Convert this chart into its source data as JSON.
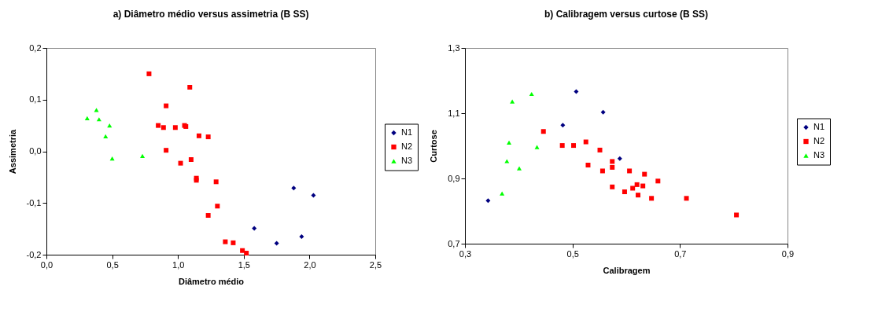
{
  "chart_data": [
    {
      "type": "scatter",
      "title": "a) Diâmetro médio versus assimetria (B SS)",
      "xlabel": "Diâmetro médio",
      "ylabel": "Assimetria",
      "xlim": [
        0,
        2.5
      ],
      "xticks": [
        {
          "value": 0,
          "label": "0,0"
        },
        {
          "value": 0.5,
          "label": "0,5"
        },
        {
          "value": 1,
          "label": "1,0"
        },
        {
          "value": 1.5,
          "label": "1,5"
        },
        {
          "value": 2,
          "label": "2,0"
        },
        {
          "value": 2.5,
          "label": "2,5"
        }
      ],
      "ylim": [
        -0.2,
        0.2
      ],
      "yticks": [
        {
          "value": -0.2,
          "label": "-0,2"
        },
        {
          "value": -0.1,
          "label": "-0,1"
        },
        {
          "value": 0,
          "label": "0,0"
        },
        {
          "value": 0.1,
          "label": "0,1"
        },
        {
          "value": 0.2,
          "label": "0,2"
        }
      ],
      "grid": false,
      "legend": "right",
      "series": [
        {
          "name": "N1",
          "color": "#000080",
          "marker": "diamond",
          "x": [
            1.58,
            1.75,
            1.88,
            1.94,
            2.03
          ],
          "values": [
            -0.149,
            -0.178,
            -0.071,
            -0.165,
            -0.085
          ]
        },
        {
          "name": "N2",
          "color": "#ff0000",
          "marker": "square",
          "x": [
            0.78,
            1.09,
            0.91,
            0.85,
            0.89,
            0.98,
            1.05,
            1.06,
            1.16,
            1.23,
            0.91,
            1.02,
            1.1,
            1.14,
            1.14,
            1.29,
            1.3,
            1.23,
            1.36,
            1.42,
            1.49,
            1.52
          ],
          "values": [
            0.15,
            0.124,
            0.088,
            0.05,
            0.046,
            0.046,
            0.05,
            0.048,
            0.03,
            0.028,
            0.002,
            -0.023,
            -0.016,
            -0.052,
            -0.056,
            -0.059,
            -0.106,
            -0.124,
            -0.175,
            -0.177,
            -0.192,
            -0.197
          ]
        },
        {
          "name": "N3",
          "color": "#00ff00",
          "marker": "triangle",
          "x": [
            0.31,
            0.38,
            0.4,
            0.48,
            0.45,
            0.5,
            0.73
          ],
          "values": [
            0.064,
            0.08,
            0.062,
            0.05,
            0.029,
            -0.014,
            -0.009
          ]
        }
      ]
    },
    {
      "type": "scatter",
      "title": "b) Calibragem versus curtose (B SS)",
      "xlabel": "Calibragem",
      "ylabel": "Curtose",
      "xlim": [
        0.3,
        0.9
      ],
      "xticks": [
        {
          "value": 0.3,
          "label": "0,3"
        },
        {
          "value": 0.5,
          "label": "0,5"
        },
        {
          "value": 0.7,
          "label": "0,7"
        },
        {
          "value": 0.9,
          "label": "0,9"
        }
      ],
      "ylim": [
        0.7,
        1.3
      ],
      "yticks": [
        {
          "value": 0.7,
          "label": "0,7"
        },
        {
          "value": 0.9,
          "label": "0,9"
        },
        {
          "value": 1.1,
          "label": "1,1"
        },
        {
          "value": 1.3,
          "label": "1,3"
        }
      ],
      "grid": false,
      "legend": "right",
      "series": [
        {
          "name": "N1",
          "color": "#000080",
          "marker": "diamond",
          "x": [
            0.343,
            0.482,
            0.507,
            0.557,
            0.588
          ],
          "values": [
            0.832,
            1.063,
            1.166,
            1.103,
            0.961
          ]
        },
        {
          "name": "N2",
          "color": "#ff0000",
          "marker": "square",
          "x": [
            0.446,
            0.481,
            0.502,
            0.525,
            0.529,
            0.551,
            0.556,
            0.574,
            0.574,
            0.606,
            0.634,
            0.659,
            0.574,
            0.597,
            0.612,
            0.62,
            0.631,
            0.622,
            0.647,
            0.712,
            0.805
          ],
          "values": [
            1.044,
            1.001,
            1.001,
            1.012,
            0.941,
            0.987,
            0.923,
            0.952,
            0.934,
            0.923,
            0.913,
            0.892,
            0.874,
            0.859,
            0.87,
            0.881,
            0.877,
            0.849,
            0.839,
            0.839,
            0.788
          ]
        },
        {
          "name": "N3",
          "color": "#00ff00",
          "marker": "triangle",
          "x": [
            0.369,
            0.378,
            0.382,
            0.388,
            0.401,
            0.424,
            0.434
          ],
          "values": [
            0.854,
            0.953,
            1.01,
            1.136,
            0.931,
            1.159,
            0.996
          ]
        }
      ]
    }
  ]
}
